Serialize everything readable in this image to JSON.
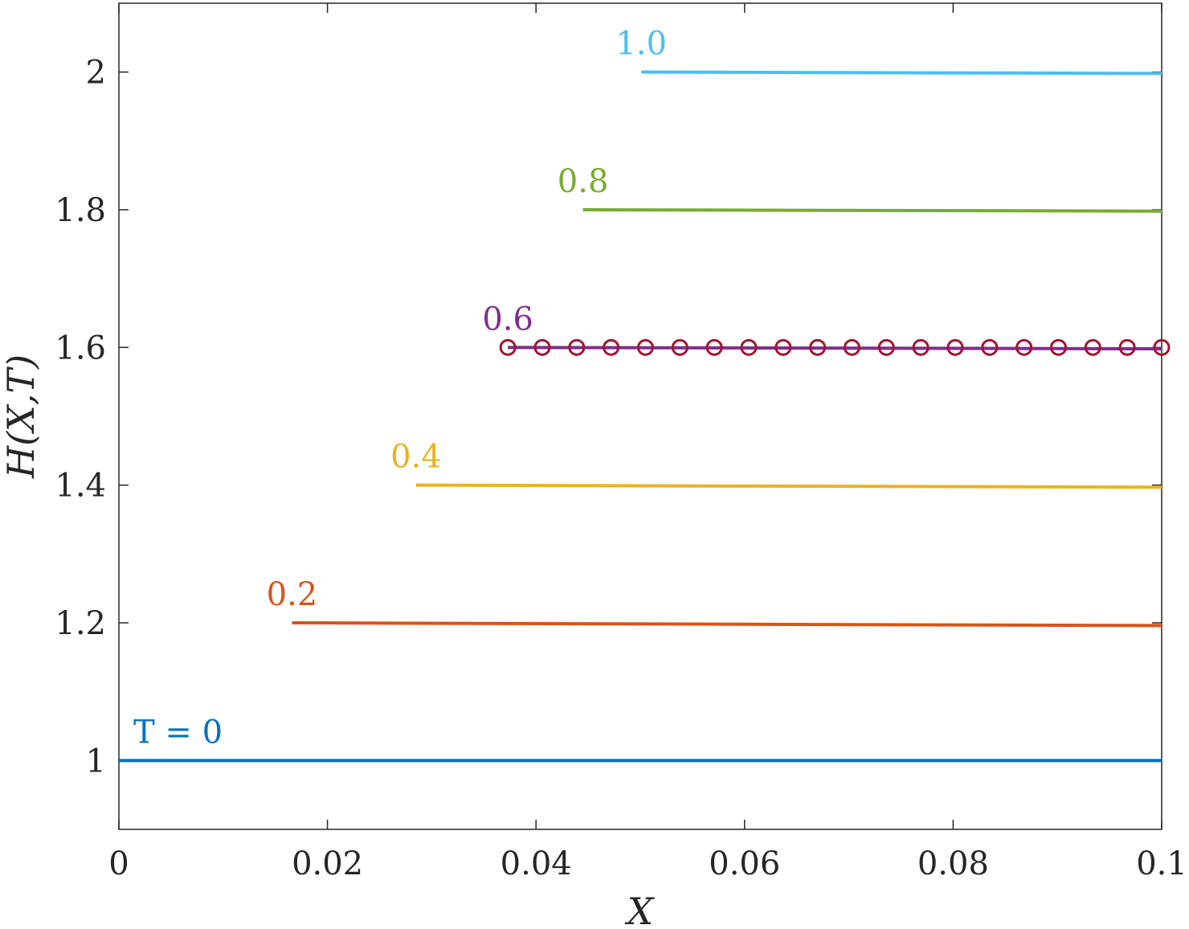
{
  "chart_data": {
    "type": "line",
    "xlabel": "X",
    "ylabel": "H(X,T)",
    "xlim": [
      0,
      0.1
    ],
    "ylim": [
      0.9,
      2.1
    ],
    "xticks": [
      0,
      0.02,
      0.04,
      0.06,
      0.08,
      0.1
    ],
    "xtick_labels": [
      "0",
      "0.02",
      "0.04",
      "0.06",
      "0.08",
      "0.1"
    ],
    "yticks": [
      1,
      1.2,
      1.4,
      1.6,
      1.8,
      2
    ],
    "ytick_labels": [
      "1",
      "1.2",
      "1.4",
      "1.6",
      "1.8",
      "2"
    ],
    "grid": false,
    "series": [
      {
        "name": "T = 0",
        "color": "#0072BD",
        "x": [
          0,
          0.1
        ],
        "y": [
          1.0,
          1.0
        ]
      },
      {
        "name": "0.2",
        "color": "#D95319",
        "x": [
          0.0166,
          0.1
        ],
        "y": [
          1.2,
          1.196
        ]
      },
      {
        "name": "0.4",
        "color": "#EDB120",
        "x": [
          0.0285,
          0.1
        ],
        "y": [
          1.4,
          1.397
        ]
      },
      {
        "name": "0.6",
        "color": "#7E2F8E",
        "x": [
          0.0373,
          0.1
        ],
        "y": [
          1.6,
          1.598
        ]
      },
      {
        "name": "0.8",
        "color": "#77AC30",
        "x": [
          0.0445,
          0.1
        ],
        "y": [
          1.8,
          1.798
        ]
      },
      {
        "name": "1.0",
        "color": "#4DBEEE",
        "x": [
          0.0501,
          0.1
        ],
        "y": [
          2.0,
          1.998
        ]
      }
    ],
    "markers": {
      "color": "#A2142F",
      "shape": "circle",
      "x": [
        0.0373,
        0.0406,
        0.0439,
        0.0472,
        0.0505,
        0.0538,
        0.0571,
        0.0604,
        0.0637,
        0.067,
        0.0703,
        0.0736,
        0.0769,
        0.0802,
        0.0835,
        0.0868,
        0.0901,
        0.0934,
        0.0967,
        0.1
      ],
      "y": [
        1.6,
        1.6,
        1.6,
        1.6,
        1.6,
        1.6,
        1.6,
        1.6,
        1.6,
        1.6,
        1.6,
        1.6,
        1.6,
        1.6,
        1.6,
        1.6,
        1.6,
        1.6,
        1.6,
        1.6
      ]
    }
  }
}
